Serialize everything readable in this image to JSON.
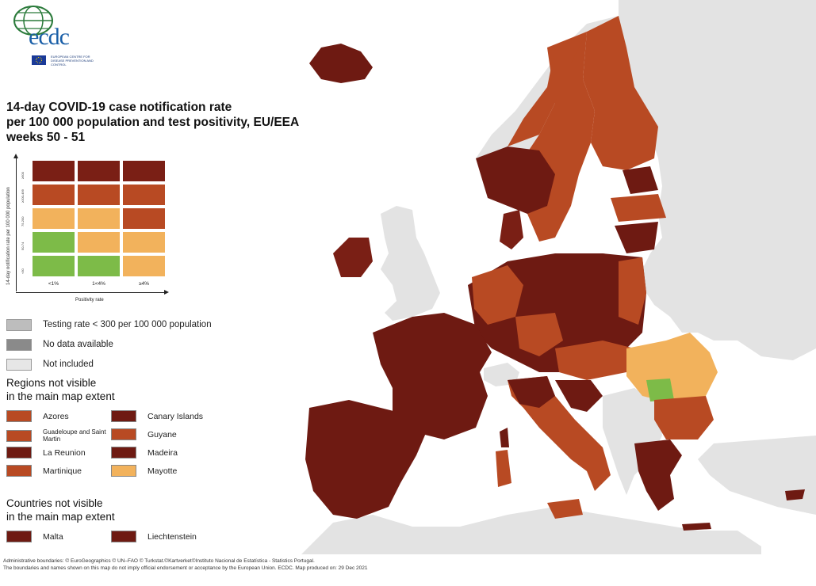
{
  "logo": {
    "text": "ecdc",
    "subtitle": "EUROPEAN CENTRE FOR DISEASE PREVENTION AND CONTROL"
  },
  "title": {
    "line1": "14-day COVID-19 case notification rate",
    "line2": "per 100 000 population and test positivity, EU/EEA",
    "line3": "weeks 50 - 51"
  },
  "matrix": {
    "y_axis_label": "14-day notification rate per 100 000 population",
    "y_ticks": [
      "≥500",
      "≥200-499",
      "75-200",
      "50-74",
      "<50"
    ],
    "x_axis_label": "Positivity rate",
    "x_ticks": [
      "<1%",
      "1<4%",
      "≥4%"
    ],
    "rows": [
      [
        "#7a1f15",
        "#7a1f15",
        "#7a1f15"
      ],
      [
        "#b84a23",
        "#b84a23",
        "#b84a23"
      ],
      [
        "#f2b25c",
        "#f2b25c",
        "#b84a23"
      ],
      [
        "#7dbb48",
        "#f2b25c",
        "#f2b25c"
      ],
      [
        "#7dbb48",
        "#7dbb48",
        "#f2b25c"
      ]
    ]
  },
  "legend": {
    "testing_rate": "Testing rate < 300 per 100 000 population",
    "no_data": "No data available",
    "not_included": "Not included",
    "colors": {
      "testing": "#bdbdbd",
      "no_data": "#8a8a8a",
      "not_included": "#e6e6e6"
    }
  },
  "regions": {
    "heading_line1": "Regions not visible",
    "heading_line2": "in the main map extent",
    "items": [
      {
        "label": "Azores",
        "color": "#b84a23"
      },
      {
        "label": "Canary Islands",
        "color": "#6e1a12"
      },
      {
        "label": "Guadeloupe and Saint Martin",
        "color": "#b84a23"
      },
      {
        "label": "Guyane",
        "color": "#b84a23"
      },
      {
        "label": "La Reunion",
        "color": "#6e1a12"
      },
      {
        "label": "Madeira",
        "color": "#6e1a12"
      },
      {
        "label": "Martinique",
        "color": "#b84a23"
      },
      {
        "label": "Mayotte",
        "color": "#f2b25c"
      }
    ]
  },
  "countries": {
    "heading_line1": "Countries not visible",
    "heading_line2": "in the main map extent",
    "items": [
      {
        "label": "Malta",
        "color": "#6e1a12"
      },
      {
        "label": "Liechtenstein",
        "color": "#6e1a12"
      }
    ]
  },
  "footer": {
    "line1": "Administrative boundaries: © EuroGeographics © UN–FAO © Turkstat.©Kartverket©Instituto Nacional de Estatística - Statistics Portugal.",
    "line2": "The boundaries and names shown on this map do not imply official endorsement or acceptance by the European Union. ECDC. Map produced on: 29 Dec 2021"
  },
  "map_colors": {
    "dark_red": "#6e1a12",
    "red_orange": "#b84a23",
    "orange": "#f2b25c",
    "green": "#7dbb48",
    "non_eu": "#e3e3e3",
    "sea": "#ffffff"
  }
}
